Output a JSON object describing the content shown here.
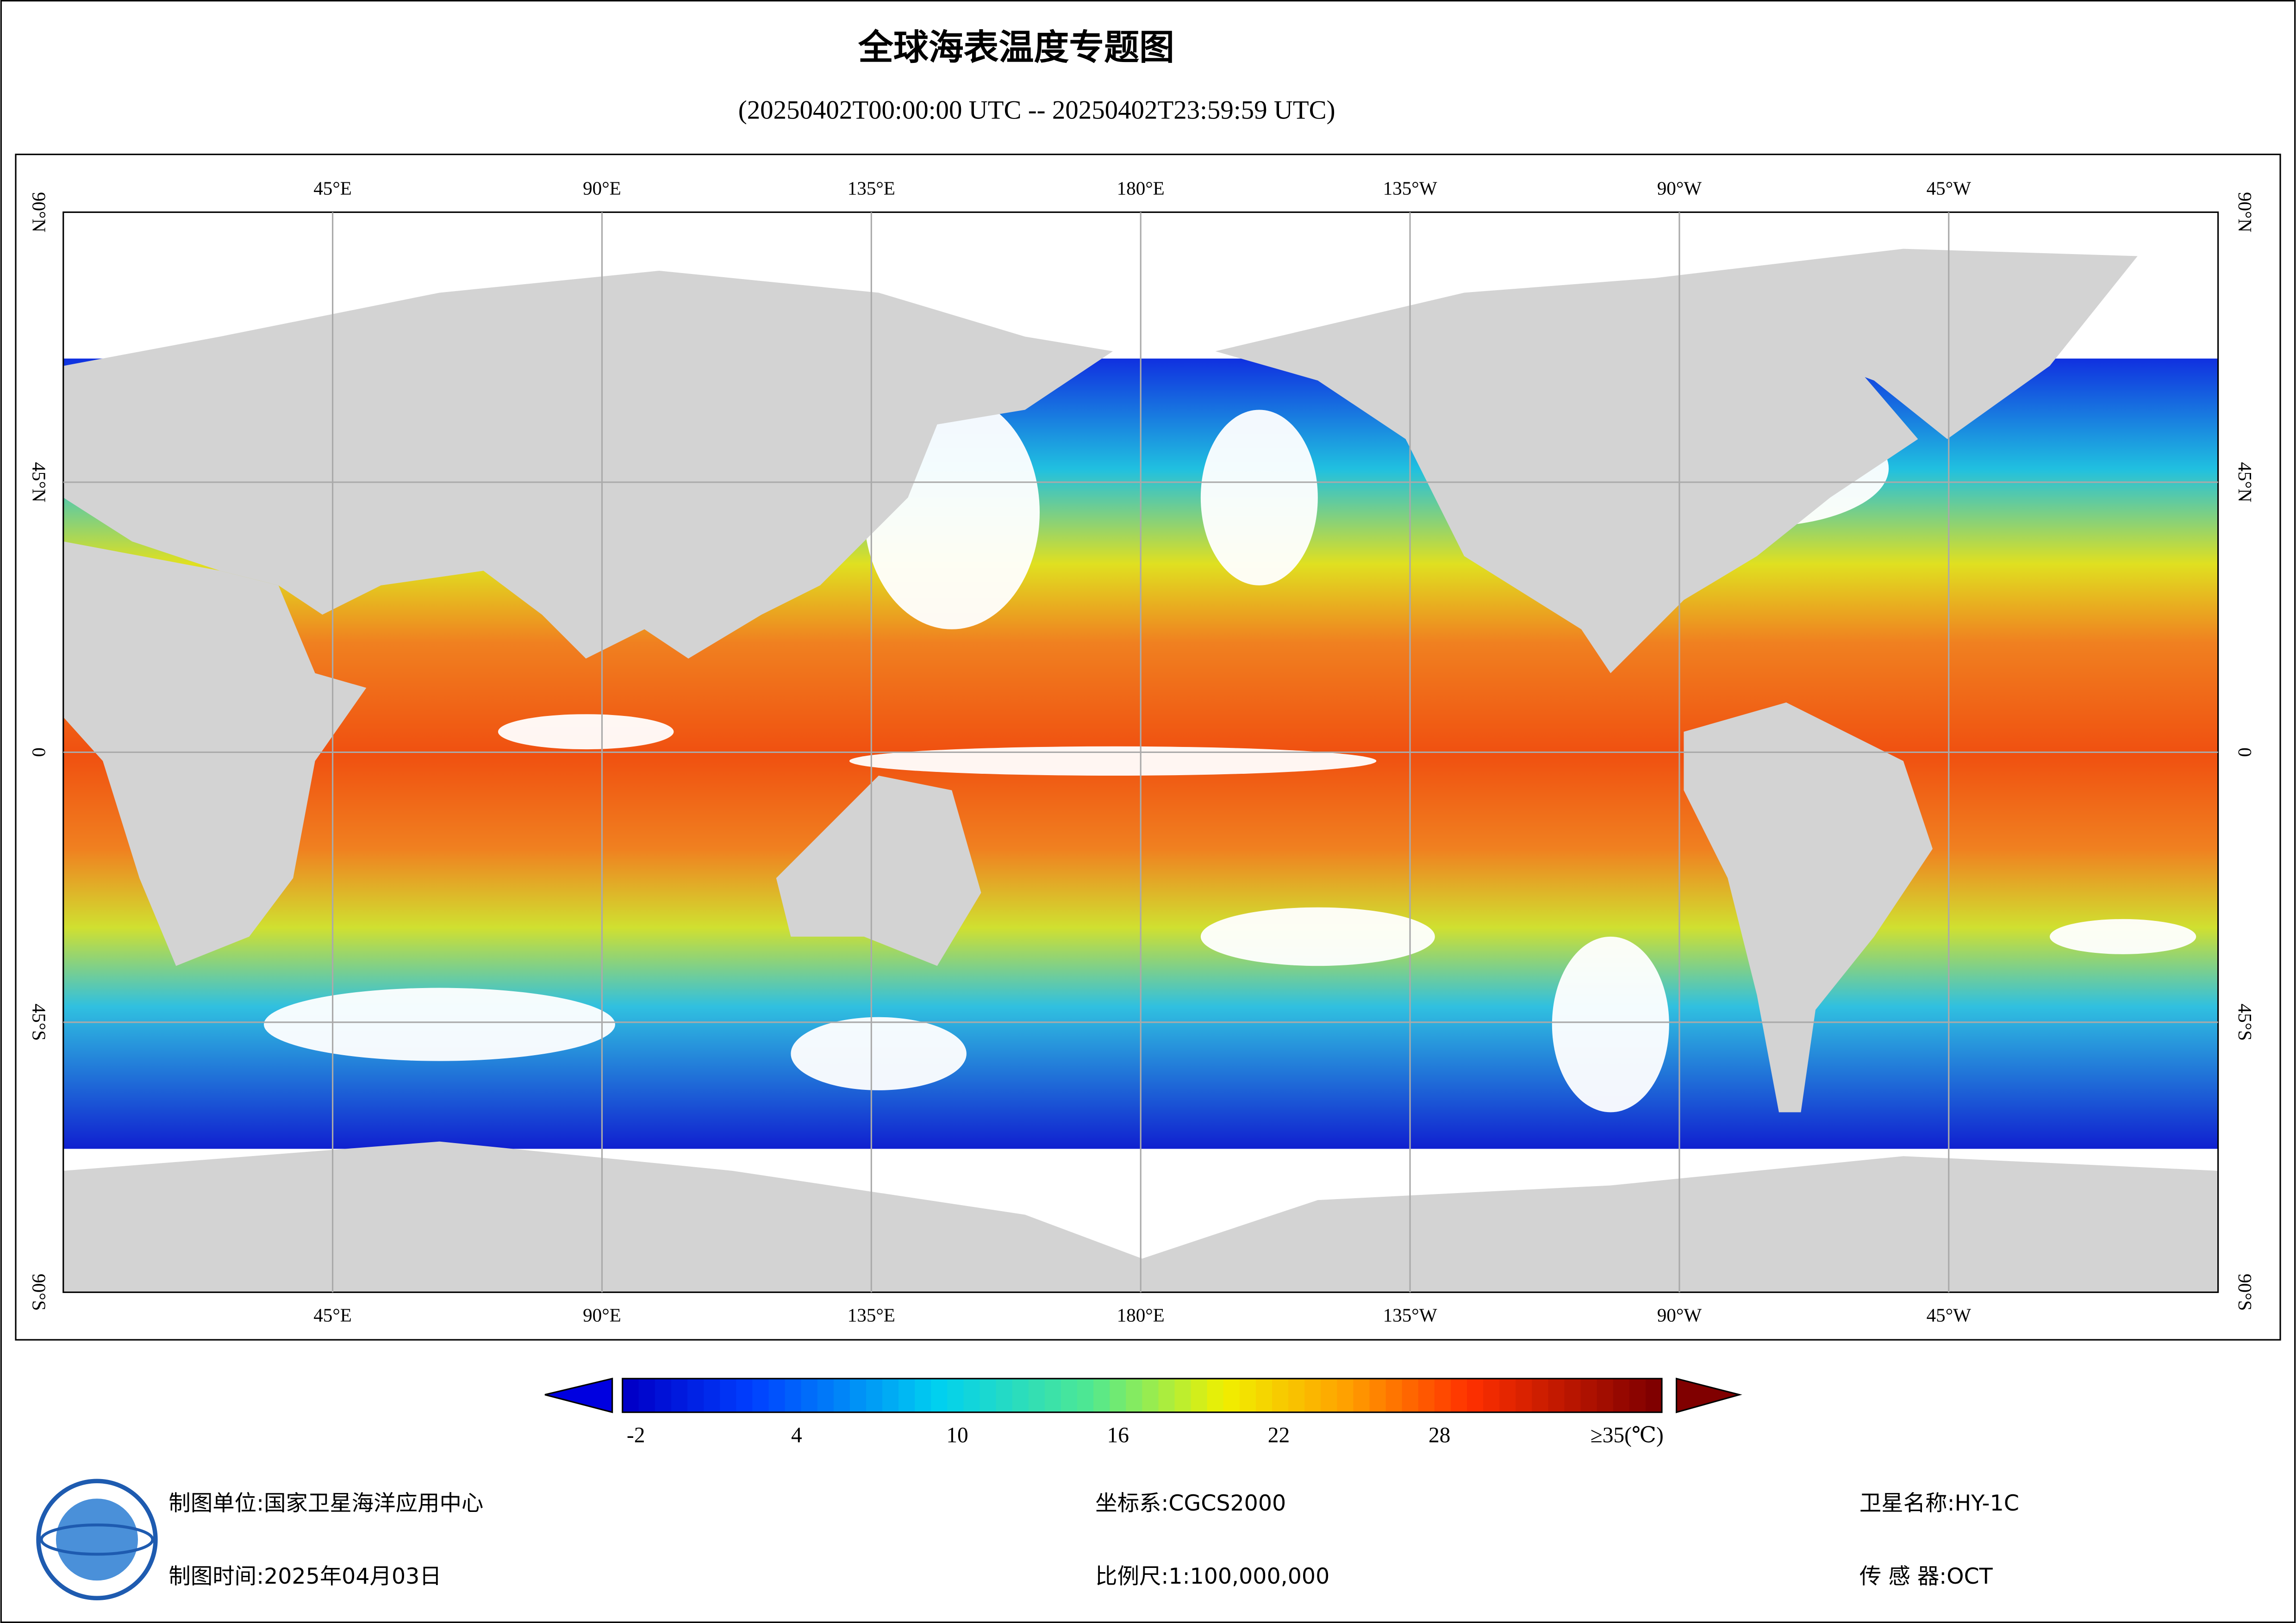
{
  "title": "全球海表温度专题图",
  "subtitle": "(20250402T00:00:00 UTC -- 20250402T23:59:59 UTC)",
  "map": {
    "top_labels": [
      "45°E",
      "90°E",
      "135°E",
      "180°E",
      "135°W",
      "90°W",
      "45°W"
    ],
    "bottom_labels": [
      "45°E",
      "90°E",
      "135°E",
      "180°E",
      "135°W",
      "90°W",
      "45°W"
    ],
    "left_labels": [
      "90°N",
      "45°N",
      "0",
      "45°S",
      "90°S"
    ],
    "right_labels": [
      "90°N",
      "45°N",
      "0",
      "45°S",
      "90°S"
    ]
  },
  "colorbar": {
    "range": [
      -2.5,
      36.3
    ],
    "ticks": [
      -2,
      4,
      10,
      16,
      22,
      28,
      {
        "value": 35,
        "label": "≥35(℃)"
      }
    ]
  },
  "footer": {
    "unit": "制图单位:国家卫星海洋应用中心",
    "date": "制图时间:2025年04月03日",
    "crs": "坐标系:CGCS2000",
    "scale": "比例尺:1:100,000,000",
    "satellite": "卫星名称:HY-1C",
    "sensor": "传 感 器:OCT"
  }
}
